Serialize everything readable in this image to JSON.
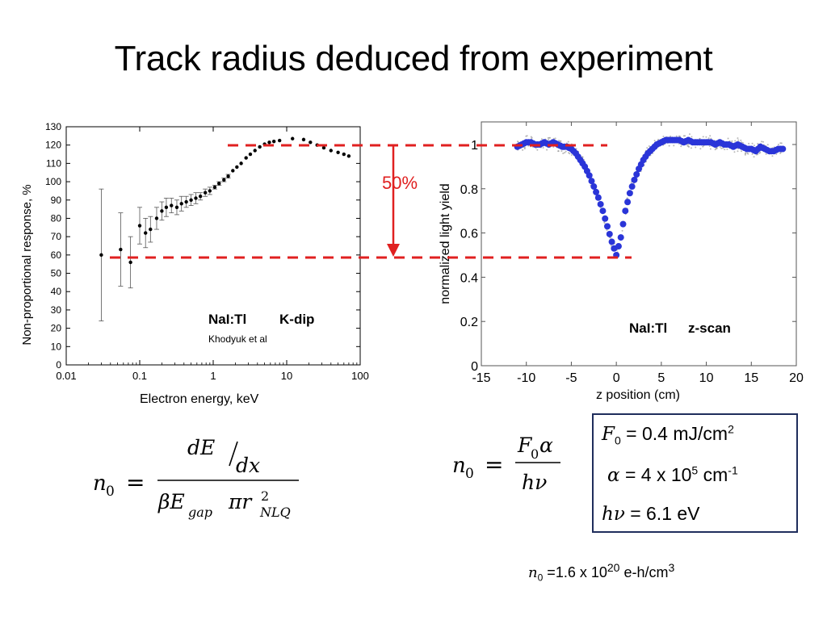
{
  "slide": {
    "title": "Track radius deduced from experiment"
  },
  "left_plot_labels": {
    "material": "NaI:Tl",
    "method": "K-dip",
    "citation": "Khodyuk et al"
  },
  "right_plot_labels": {
    "material": "NaI:Tl",
    "method": "z-scan"
  },
  "annotation": {
    "text": "50%",
    "color": "#e02020"
  },
  "equation_left": {
    "lhs": "n",
    "lhs_sub": "0",
    "numerator": "dE",
    "numerator_den": "dx",
    "denominator": "βE",
    "denominator_sub": "gap",
    "denominator_rest": "πr",
    "denominator_sup": "2",
    "denominator_sub2": "NLQ"
  },
  "equation_right": {
    "lhs": "n",
    "lhs_sub": "0",
    "numerator": "F",
    "numerator_sub": "0",
    "numerator_rest": "α",
    "denominator": "hν"
  },
  "params": {
    "f0_symbol": "F",
    "f0_sub": "0",
    "f0_value": "0.4 mJ/cm",
    "f0_sup": "2",
    "alpha_symbol": "α",
    "alpha_value": "4 x 10",
    "alpha_sup": "5",
    "alpha_unit": " cm",
    "alpha_unit_sup": "-1",
    "hv_symbol": "hν",
    "hv_value": "6.1 eV",
    "border_color": "#1f2d5c"
  },
  "result": {
    "symbol": "n",
    "sub": "0",
    "value": "1.6 x 10",
    "sup": "20",
    "unit": " e-h/cm",
    "unit_sup": "3"
  },
  "chart_data": [
    {
      "type": "scatter",
      "title": "",
      "xlabel": "Electron energy, keV",
      "ylabel": "Non-proportional response, %",
      "xscale": "log",
      "xlim": [
        0.01,
        100
      ],
      "ylim": [
        0,
        130
      ],
      "x_ticks": [
        0.01,
        0.1,
        1,
        10,
        100
      ],
      "x_tick_labels": [
        "0.01",
        "0.1",
        "1",
        "10",
        "100"
      ],
      "y_ticks": [
        0,
        10,
        20,
        30,
        40,
        50,
        60,
        70,
        80,
        90,
        100,
        110,
        120,
        130
      ],
      "grid": false,
      "marker_color": "#000000",
      "points": [
        {
          "x": 0.03,
          "y": 60,
          "err": 36
        },
        {
          "x": 0.055,
          "y": 63,
          "err": 20
        },
        {
          "x": 0.075,
          "y": 56,
          "err": 14
        },
        {
          "x": 0.1,
          "y": 76,
          "err": 10
        },
        {
          "x": 0.12,
          "y": 72,
          "err": 8
        },
        {
          "x": 0.14,
          "y": 74,
          "err": 7
        },
        {
          "x": 0.17,
          "y": 80,
          "err": 6
        },
        {
          "x": 0.2,
          "y": 84,
          "err": 5
        },
        {
          "x": 0.23,
          "y": 86,
          "err": 5
        },
        {
          "x": 0.27,
          "y": 87,
          "err": 4
        },
        {
          "x": 0.32,
          "y": 86,
          "err": 4
        },
        {
          "x": 0.37,
          "y": 88,
          "err": 4
        },
        {
          "x": 0.43,
          "y": 89,
          "err": 3
        },
        {
          "x": 0.5,
          "y": 90,
          "err": 3
        },
        {
          "x": 0.58,
          "y": 91,
          "err": 3
        },
        {
          "x": 0.67,
          "y": 92,
          "err": 2
        },
        {
          "x": 0.78,
          "y": 94,
          "err": 2
        },
        {
          "x": 0.9,
          "y": 95,
          "err": 2
        },
        {
          "x": 1.05,
          "y": 97,
          "err": 1
        },
        {
          "x": 1.2,
          "y": 99,
          "err": 1
        },
        {
          "x": 1.4,
          "y": 101,
          "err": 1
        },
        {
          "x": 1.6,
          "y": 103,
          "err": 1
        },
        {
          "x": 1.85,
          "y": 106,
          "err": 0
        },
        {
          "x": 2.1,
          "y": 108,
          "err": 0
        },
        {
          "x": 2.4,
          "y": 110,
          "err": 0
        },
        {
          "x": 2.8,
          "y": 113,
          "err": 0
        },
        {
          "x": 3.2,
          "y": 115,
          "err": 0
        },
        {
          "x": 3.7,
          "y": 117,
          "err": 0
        },
        {
          "x": 4.3,
          "y": 119,
          "err": 0
        },
        {
          "x": 5.0,
          "y": 120.5,
          "err": 0
        },
        {
          "x": 5.8,
          "y": 121.5,
          "err": 0
        },
        {
          "x": 6.7,
          "y": 122,
          "err": 0
        },
        {
          "x": 8.0,
          "y": 122.5,
          "err": 0
        },
        {
          "x": 12,
          "y": 123.5,
          "err": 0
        },
        {
          "x": 17,
          "y": 123,
          "err": 0
        },
        {
          "x": 21,
          "y": 121.5,
          "err": 0
        },
        {
          "x": 26,
          "y": 120,
          "err": 0
        },
        {
          "x": 32,
          "y": 118.5,
          "err": 0
        },
        {
          "x": 40,
          "y": 117,
          "err": 0
        },
        {
          "x": 50,
          "y": 116,
          "err": 0
        },
        {
          "x": 60,
          "y": 115,
          "err": 0
        },
        {
          "x": 70,
          "y": 114,
          "err": 0
        }
      ]
    },
    {
      "type": "scatter",
      "title": "",
      "xlabel": "z position (cm)",
      "ylabel": "normalized light yield",
      "xlim": [
        -15,
        20
      ],
      "ylim": [
        0,
        1.1
      ],
      "x_ticks": [
        -15,
        -10,
        -5,
        0,
        5,
        10,
        15,
        20
      ],
      "x_tick_labels": [
        "-15",
        "-10",
        "-5",
        "0",
        "5",
        "10",
        "15",
        "20"
      ],
      "y_ticks": [
        0,
        0.2,
        0.4,
        0.6,
        0.8,
        1
      ],
      "y_tick_labels": [
        "0",
        "0.2",
        "0.4",
        "0.6",
        "0.8",
        "1"
      ],
      "grid": false,
      "marker_color": "#2a35d8",
      "x": [
        -11,
        -10.5,
        -10,
        -9.5,
        -9,
        -8.5,
        -8,
        -7.5,
        -7,
        -6.5,
        -6,
        -5.5,
        -5,
        -4.5,
        -4,
        -3.5,
        -3,
        -2.5,
        -2,
        -1.5,
        -1,
        -0.5,
        0,
        0.5,
        1,
        1.5,
        2,
        2.5,
        3,
        3.5,
        4,
        4.5,
        5,
        5.5,
        6,
        6.5,
        7,
        7.5,
        8,
        8.5,
        9,
        9.5,
        10,
        10.5,
        11,
        11.5,
        12,
        12.5,
        13,
        13.5,
        14,
        14.5,
        15,
        15.5,
        16,
        16.5,
        17,
        17.5,
        18,
        18.5
      ],
      "y": [
        0.99,
        1.0,
        1.01,
        1.01,
        1.0,
        1.0,
        1.01,
        1.0,
        1.01,
        1.0,
        0.99,
        0.99,
        0.98,
        0.96,
        0.93,
        0.9,
        0.86,
        0.81,
        0.76,
        0.7,
        0.63,
        0.56,
        0.5,
        0.58,
        0.7,
        0.78,
        0.84,
        0.89,
        0.93,
        0.96,
        0.98,
        1.0,
        1.01,
        1.02,
        1.02,
        1.02,
        1.02,
        1.01,
        1.02,
        1.01,
        1.01,
        1.01,
        1.01,
        1.01,
        1.0,
        1.01,
        1.0,
        1.0,
        0.99,
        1.0,
        0.99,
        0.98,
        0.98,
        0.97,
        0.99,
        0.98,
        0.97,
        0.97,
        0.98,
        0.98
      ]
    }
  ]
}
